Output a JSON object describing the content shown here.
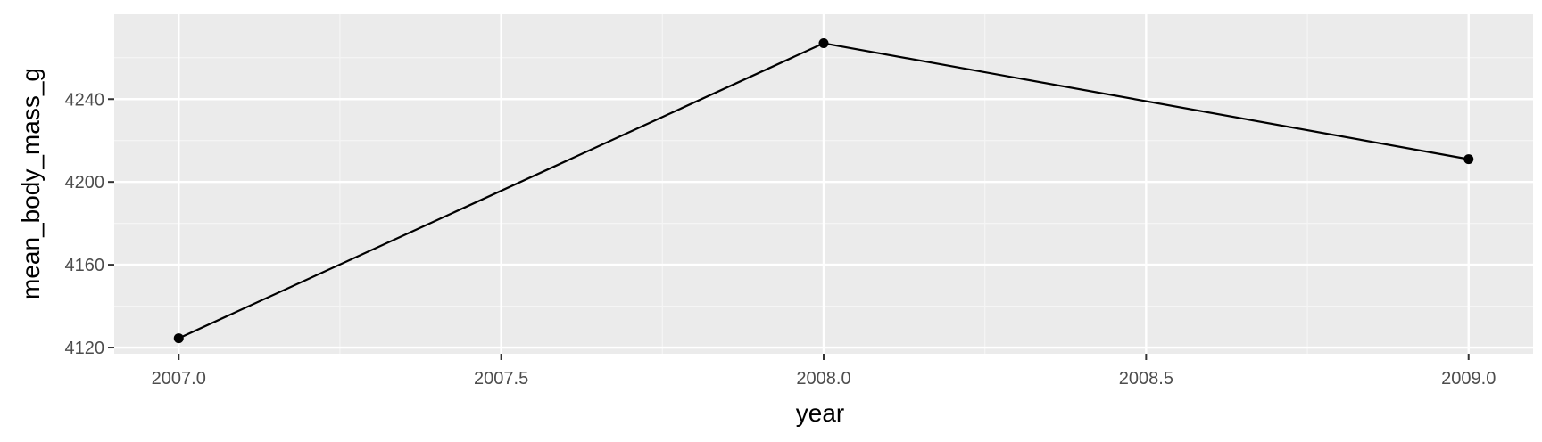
{
  "chart_data": {
    "type": "line",
    "title": "",
    "xlabel": "year",
    "ylabel": "mean_body_mass_g",
    "xlim": [
      2006.9,
      2009.1
    ],
    "ylim": [
      4117,
      4281
    ],
    "x_ticks": [
      2007.0,
      2007.5,
      2008.0,
      2008.5,
      2009.0
    ],
    "x_tick_labels": [
      "2007.0",
      "2007.5",
      "2008.0",
      "2008.5",
      "2009.0"
    ],
    "y_ticks": [
      4120,
      4160,
      4200,
      4240
    ],
    "y_tick_labels": [
      "4120",
      "4160",
      "4200",
      "4240"
    ],
    "grid": true,
    "legend": "none",
    "series": [
      {
        "x": [
          2007,
          2008,
          2009
        ],
        "y": [
          4124.5,
          4267,
          4211
        ],
        "color": "#000000",
        "markers": true
      }
    ],
    "colors": {
      "panel_background": "#ebebeb",
      "grid_major": "#ffffff",
      "grid_minor": "#f5f5f5",
      "line": "#000000"
    }
  }
}
